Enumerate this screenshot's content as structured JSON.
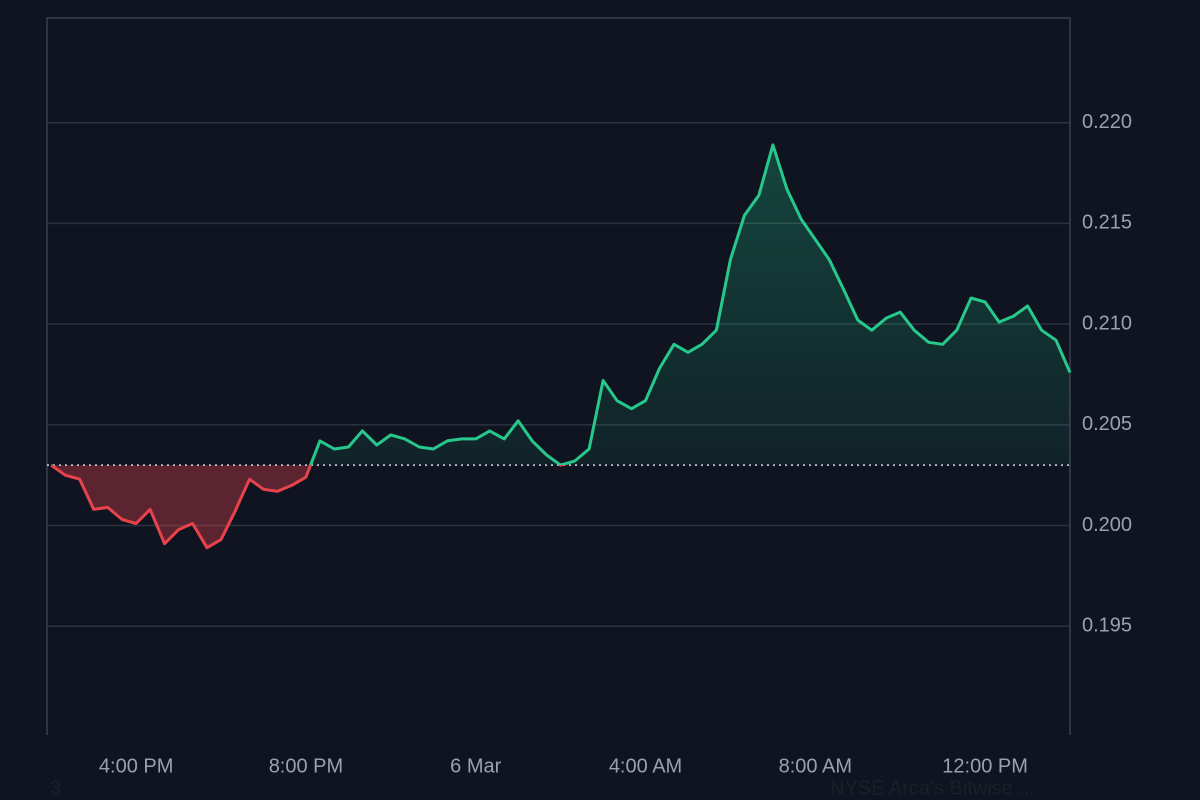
{
  "chart_data": {
    "type": "line",
    "x": [
      14,
      14.33,
      14.67,
      15,
      15.33,
      15.67,
      16,
      16.33,
      16.67,
      17,
      17.33,
      17.67,
      18,
      18.33,
      18.67,
      19,
      19.33,
      19.67,
      20,
      20.33,
      20.67,
      21,
      21.33,
      21.67,
      22,
      22.33,
      22.67,
      23,
      23.33,
      23.67,
      24,
      24.33,
      24.67,
      25,
      25.33,
      25.67,
      26,
      26.33,
      26.67,
      27,
      27.33,
      27.67,
      28,
      28.33,
      28.67,
      29,
      29.33,
      29.67,
      30,
      30.33,
      30.67,
      31,
      31.33,
      31.67,
      32,
      32.33,
      32.67,
      33,
      33.33,
      33.67,
      34,
      34.33,
      34.67,
      35,
      35.33,
      35.67,
      36,
      36.33,
      36.67,
      37,
      37.33,
      37.67,
      38
    ],
    "values": [
      0.203,
      0.2025,
      0.2023,
      0.2008,
      0.2009,
      0.2003,
      0.2001,
      0.2008,
      0.1991,
      0.1998,
      0.2001,
      0.1989,
      0.1993,
      0.2007,
      0.2023,
      0.2018,
      0.2017,
      0.202,
      0.2024,
      0.2042,
      0.2038,
      0.2039,
      0.2047,
      0.204,
      0.2045,
      0.2043,
      0.2039,
      0.2038,
      0.2042,
      0.2043,
      0.2043,
      0.2047,
      0.2043,
      0.2052,
      0.2042,
      0.2035,
      0.203,
      0.2032,
      0.2038,
      0.2072,
      0.2062,
      0.2058,
      0.2062,
      0.2078,
      0.209,
      0.2086,
      0.209,
      0.2097,
      0.2132,
      0.2154,
      0.2164,
      0.2189,
      0.2167,
      0.2152,
      0.2142,
      0.2132,
      0.2117,
      0.2102,
      0.2097,
      0.2103,
      0.2106,
      0.2097,
      0.2091,
      0.209,
      0.2097,
      0.2113,
      0.2111,
      0.2101,
      0.2104,
      0.2109,
      0.2097,
      0.2092,
      0.2076
    ],
    "baseline": 0.203,
    "up_color": "#26c98b",
    "down_color": "#e8434c",
    "xlim": [
      13.9,
      38.0
    ],
    "xticks": [
      {
        "value": 16,
        "label": "4:00 PM"
      },
      {
        "value": 20,
        "label": "8:00 PM"
      },
      {
        "value": 24,
        "label": "6 Mar"
      },
      {
        "value": 28,
        "label": "4:00 AM"
      },
      {
        "value": 32,
        "label": "8:00 AM"
      },
      {
        "value": 36,
        "label": "12:00 PM"
      }
    ],
    "ylim": [
      0.1896,
      0.2252
    ],
    "yticks": [
      0.195,
      {
        "value": 0.2,
        "label": "0.200"
      },
      0.205,
      {
        "value": 0.21,
        "label": "0.210"
      },
      0.215,
      {
        "value": 0.22,
        "label": "0.220"
      }
    ],
    "grid": true
  },
  "footer": {
    "left": "3",
    "right": "NYSE Arca's Bitwise ..."
  }
}
